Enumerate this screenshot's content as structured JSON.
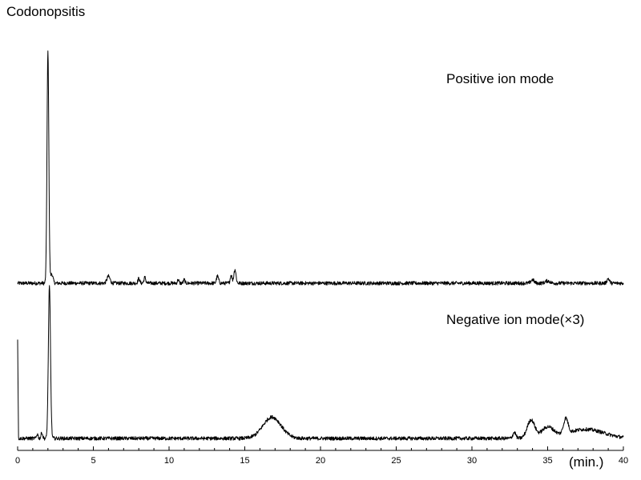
{
  "title": "Codonopsitis",
  "chart_data": {
    "type": "line",
    "title": "Codonopsitis",
    "xlabel": "(min.)",
    "ylabel": "",
    "xlim": [
      0,
      40
    ],
    "xticks": [
      "0",
      "5",
      "10",
      "15",
      "20",
      "25",
      "30",
      "35",
      "40"
    ],
    "grid": false,
    "series": [
      {
        "name": "Positive ion mode",
        "baseline_noise": 0.008,
        "peaks": [
          {
            "rt": 2.0,
            "height": 1.0,
            "width": 0.06
          },
          {
            "rt": 2.25,
            "height": 0.04,
            "width": 0.08
          },
          {
            "rt": 6.0,
            "height": 0.03,
            "width": 0.1
          },
          {
            "rt": 8.0,
            "height": 0.02,
            "width": 0.06
          },
          {
            "rt": 8.4,
            "height": 0.025,
            "width": 0.06
          },
          {
            "rt": 10.6,
            "height": 0.015,
            "width": 0.05
          },
          {
            "rt": 11.0,
            "height": 0.015,
            "width": 0.05
          },
          {
            "rt": 13.2,
            "height": 0.03,
            "width": 0.07
          },
          {
            "rt": 14.1,
            "height": 0.035,
            "width": 0.06
          },
          {
            "rt": 14.35,
            "height": 0.06,
            "width": 0.07
          },
          {
            "rt": 34.0,
            "height": 0.015,
            "width": 0.1
          },
          {
            "rt": 35.0,
            "height": 0.01,
            "width": 0.15
          },
          {
            "rt": 39.0,
            "height": 0.02,
            "width": 0.08
          }
        ]
      },
      {
        "name": "Negative ion mode(×3)",
        "baseline_noise": 0.012,
        "start_spike": 0.65,
        "peaks": [
          {
            "rt": 1.3,
            "height": 0.03,
            "width": 0.05
          },
          {
            "rt": 1.6,
            "height": 0.04,
            "width": 0.05
          },
          {
            "rt": 2.1,
            "height": 1.0,
            "width": 0.07
          },
          {
            "rt": 16.8,
            "height": 0.14,
            "width": 0.6
          },
          {
            "rt": 32.8,
            "height": 0.04,
            "width": 0.1
          },
          {
            "rt": 33.9,
            "height": 0.12,
            "width": 0.25
          },
          {
            "rt": 35.0,
            "height": 0.07,
            "width": 0.4
          },
          {
            "rt": 36.2,
            "height": 0.1,
            "width": 0.15
          },
          {
            "rt": 37.5,
            "height": 0.06,
            "width": 1.2
          }
        ]
      }
    ]
  }
}
